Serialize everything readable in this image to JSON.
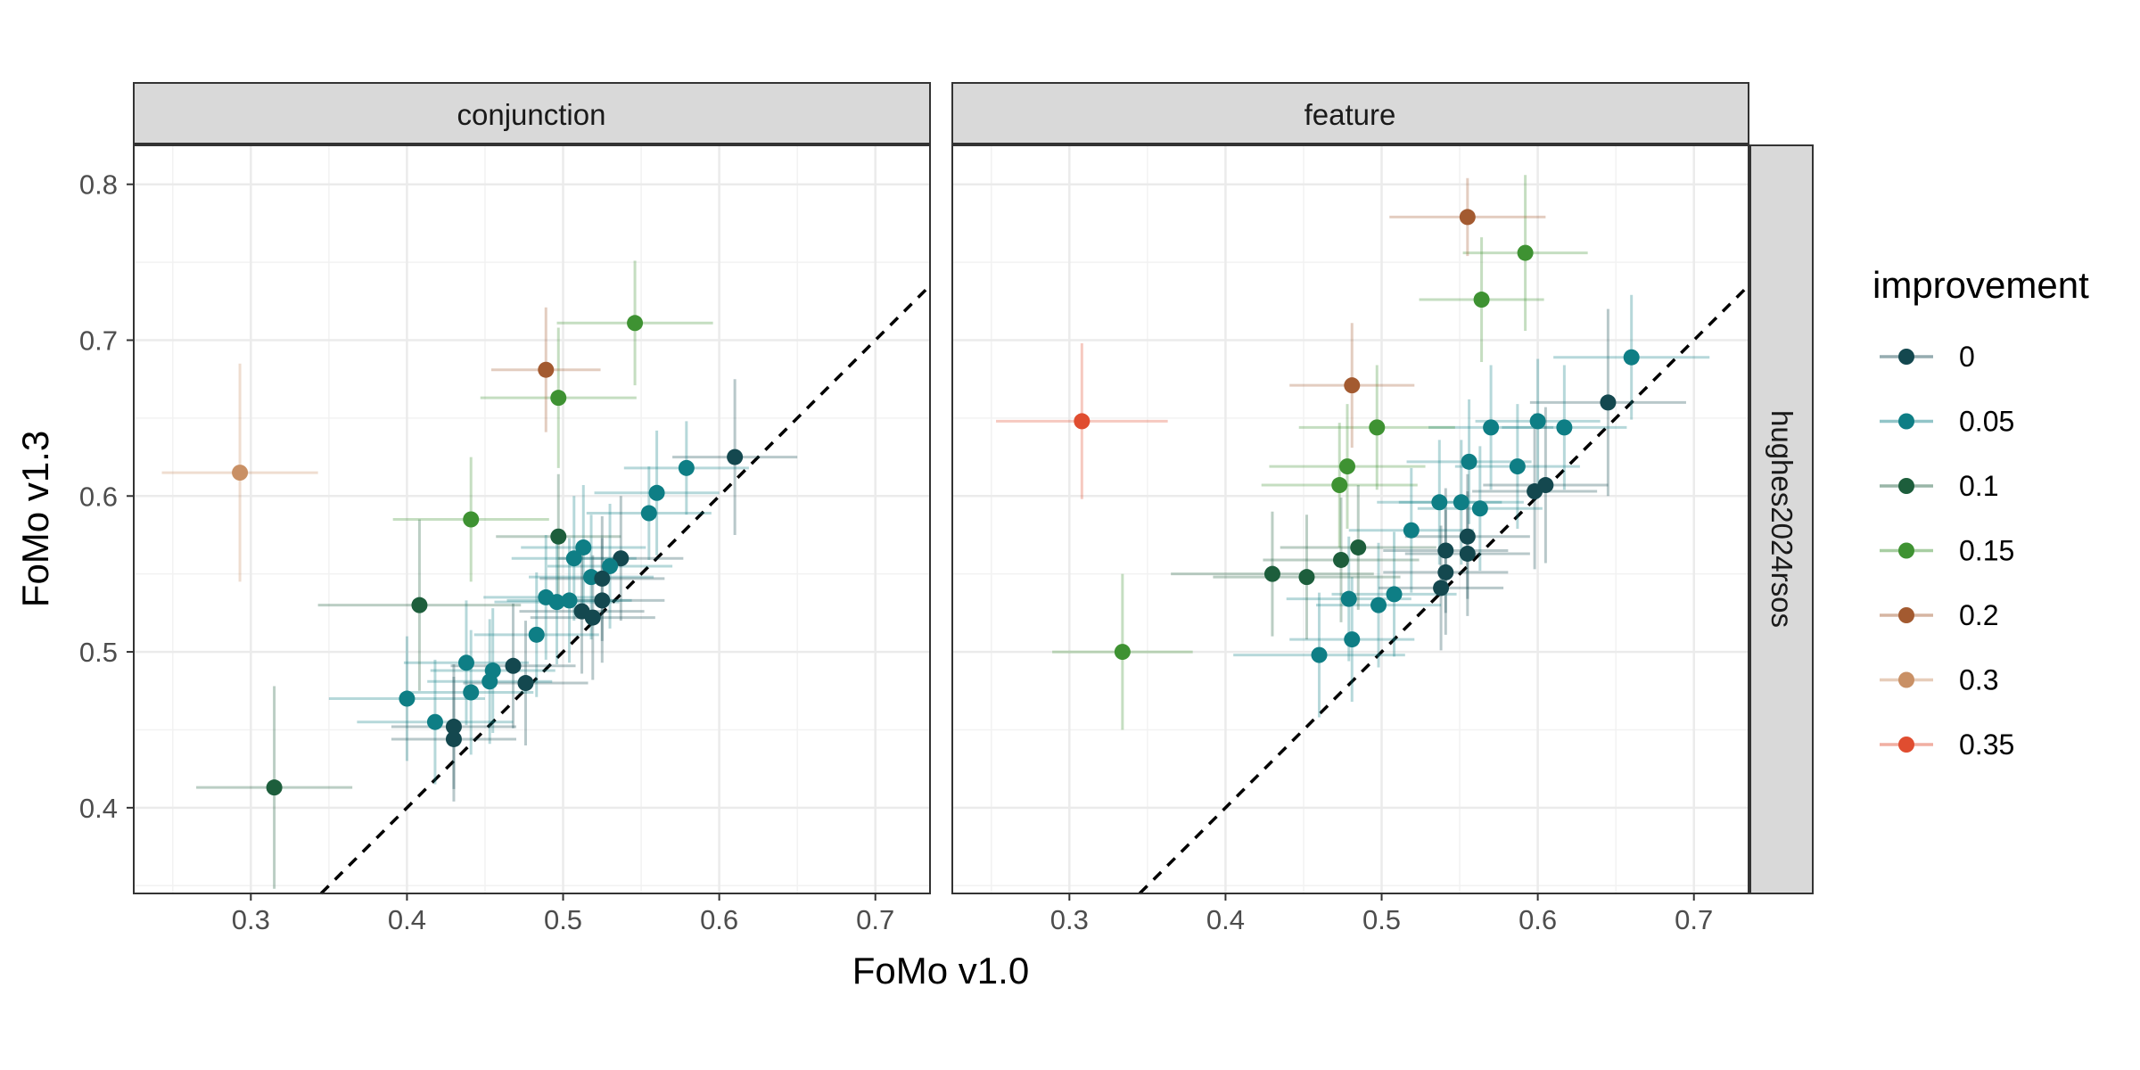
{
  "chart_data": {
    "type": "scatter",
    "xlabel": "FoMo v1.0",
    "ylabel": "FoMo v1.3",
    "xlim": [
      0.225,
      0.735
    ],
    "ylim": [
      0.345,
      0.825
    ],
    "x_ticks": [
      "0.3",
      "0.4",
      "0.5",
      "0.6",
      "0.7"
    ],
    "y_ticks": [
      "0.4",
      "0.5",
      "0.6",
      "0.7",
      "0.8"
    ],
    "grid": true,
    "reference_line": "y = x, dashed",
    "row_strip": "hughes2024rsos",
    "legend": {
      "title": "improvement",
      "placement": "right",
      "levels": [
        {
          "label": "0",
          "color": "#14484f"
        },
        {
          "label": "0.05",
          "color": "#0e7e85"
        },
        {
          "label": "0.1",
          "color": "#1d5e3c"
        },
        {
          "label": "0.15",
          "color": "#3e9232"
        },
        {
          "label": "0.2",
          "color": "#a35a30"
        },
        {
          "label": "0.3",
          "color": "#c99065"
        },
        {
          "label": "0.35",
          "color": "#e04d30"
        }
      ]
    },
    "panels": [
      {
        "title": "conjunction",
        "points": [
          {
            "x": 0.61,
            "y": 0.625,
            "xerr": 0.04,
            "yerr": 0.05,
            "g": "0"
          },
          {
            "x": 0.579,
            "y": 0.618,
            "xerr": 0.04,
            "yerr": 0.03,
            "g": "0.05"
          },
          {
            "x": 0.56,
            "y": 0.602,
            "xerr": 0.04,
            "yerr": 0.04,
            "g": "0.05"
          },
          {
            "x": 0.555,
            "y": 0.589,
            "xerr": 0.04,
            "yerr": 0.03,
            "g": "0.05"
          },
          {
            "x": 0.537,
            "y": 0.56,
            "xerr": 0.04,
            "yerr": 0.04,
            "g": "0"
          },
          {
            "x": 0.53,
            "y": 0.555,
            "xerr": 0.04,
            "yerr": 0.04,
            "g": "0.05"
          },
          {
            "x": 0.513,
            "y": 0.567,
            "xerr": 0.04,
            "yerr": 0.04,
            "g": "0.05"
          },
          {
            "x": 0.518,
            "y": 0.548,
            "xerr": 0.04,
            "yerr": 0.04,
            "g": "0.05"
          },
          {
            "x": 0.525,
            "y": 0.547,
            "xerr": 0.04,
            "yerr": 0.04,
            "g": "0"
          },
          {
            "x": 0.507,
            "y": 0.56,
            "xerr": 0.04,
            "yerr": 0.04,
            "g": "0.05"
          },
          {
            "x": 0.497,
            "y": 0.574,
            "xerr": 0.04,
            "yerr": 0.04,
            "g": "0.1"
          },
          {
            "x": 0.525,
            "y": 0.533,
            "xerr": 0.04,
            "yerr": 0.04,
            "g": "0"
          },
          {
            "x": 0.519,
            "y": 0.522,
            "xerr": 0.04,
            "yerr": 0.04,
            "g": "0"
          },
          {
            "x": 0.512,
            "y": 0.526,
            "xerr": 0.04,
            "yerr": 0.04,
            "g": "0"
          },
          {
            "x": 0.504,
            "y": 0.533,
            "xerr": 0.04,
            "yerr": 0.04,
            "g": "0.05"
          },
          {
            "x": 0.496,
            "y": 0.532,
            "xerr": 0.04,
            "yerr": 0.04,
            "g": "0.05"
          },
          {
            "x": 0.489,
            "y": 0.535,
            "xerr": 0.04,
            "yerr": 0.04,
            "g": "0.05"
          },
          {
            "x": 0.483,
            "y": 0.511,
            "xerr": 0.04,
            "yerr": 0.04,
            "g": "0.05"
          },
          {
            "x": 0.476,
            "y": 0.48,
            "xerr": 0.04,
            "yerr": 0.04,
            "g": "0"
          },
          {
            "x": 0.468,
            "y": 0.491,
            "xerr": 0.04,
            "yerr": 0.04,
            "g": "0"
          },
          {
            "x": 0.455,
            "y": 0.488,
            "xerr": 0.04,
            "yerr": 0.04,
            "g": "0.05"
          },
          {
            "x": 0.453,
            "y": 0.481,
            "xerr": 0.04,
            "yerr": 0.04,
            "g": "0.05"
          },
          {
            "x": 0.438,
            "y": 0.493,
            "xerr": 0.04,
            "yerr": 0.04,
            "g": "0.05"
          },
          {
            "x": 0.441,
            "y": 0.474,
            "xerr": 0.04,
            "yerr": 0.04,
            "g": "0.05"
          },
          {
            "x": 0.4,
            "y": 0.47,
            "xerr": 0.05,
            "yerr": 0.04,
            "g": "0.05"
          },
          {
            "x": 0.418,
            "y": 0.455,
            "xerr": 0.05,
            "yerr": 0.04,
            "g": "0.05"
          },
          {
            "x": 0.43,
            "y": 0.452,
            "xerr": 0.04,
            "yerr": 0.04,
            "g": "0"
          },
          {
            "x": 0.43,
            "y": 0.444,
            "xerr": 0.04,
            "yerr": 0.04,
            "g": "0"
          },
          {
            "x": 0.408,
            "y": 0.53,
            "xerr": 0.065,
            "yerr": 0.055,
            "g": "0.1"
          },
          {
            "x": 0.315,
            "y": 0.413,
            "xerr": 0.05,
            "yerr": 0.065,
            "g": "0.1"
          },
          {
            "x": 0.441,
            "y": 0.585,
            "xerr": 0.05,
            "yerr": 0.04,
            "g": "0.15"
          },
          {
            "x": 0.497,
            "y": 0.663,
            "xerr": 0.05,
            "yerr": 0.045,
            "g": "0.15"
          },
          {
            "x": 0.546,
            "y": 0.711,
            "xerr": 0.05,
            "yerr": 0.04,
            "g": "0.15"
          },
          {
            "x": 0.489,
            "y": 0.681,
            "xerr": 0.035,
            "yerr": 0.04,
            "g": "0.2"
          },
          {
            "x": 0.293,
            "y": 0.615,
            "xerr": 0.05,
            "yerr": 0.07,
            "g": "0.3"
          }
        ]
      },
      {
        "title": "feature",
        "points": [
          {
            "x": 0.645,
            "y": 0.66,
            "xerr": 0.05,
            "yerr": 0.06,
            "g": "0"
          },
          {
            "x": 0.66,
            "y": 0.689,
            "xerr": 0.05,
            "yerr": 0.04,
            "g": "0.05"
          },
          {
            "x": 0.617,
            "y": 0.644,
            "xerr": 0.04,
            "yerr": 0.04,
            "g": "0.05"
          },
          {
            "x": 0.6,
            "y": 0.648,
            "xerr": 0.04,
            "yerr": 0.04,
            "g": "0.05"
          },
          {
            "x": 0.57,
            "y": 0.644,
            "xerr": 0.04,
            "yerr": 0.04,
            "g": "0.05"
          },
          {
            "x": 0.587,
            "y": 0.619,
            "xerr": 0.04,
            "yerr": 0.04,
            "g": "0.05"
          },
          {
            "x": 0.605,
            "y": 0.607,
            "xerr": 0.04,
            "yerr": 0.05,
            "g": "0"
          },
          {
            "x": 0.598,
            "y": 0.603,
            "xerr": 0.04,
            "yerr": 0.05,
            "g": "0"
          },
          {
            "x": 0.556,
            "y": 0.622,
            "xerr": 0.04,
            "yerr": 0.04,
            "g": "0.05"
          },
          {
            "x": 0.563,
            "y": 0.592,
            "xerr": 0.04,
            "yerr": 0.04,
            "g": "0.05"
          },
          {
            "x": 0.551,
            "y": 0.596,
            "xerr": 0.04,
            "yerr": 0.04,
            "g": "0.05"
          },
          {
            "x": 0.537,
            "y": 0.596,
            "xerr": 0.04,
            "yerr": 0.04,
            "g": "0.05"
          },
          {
            "x": 0.519,
            "y": 0.578,
            "xerr": 0.04,
            "yerr": 0.04,
            "g": "0.05"
          },
          {
            "x": 0.555,
            "y": 0.574,
            "xerr": 0.04,
            "yerr": 0.04,
            "g": "0"
          },
          {
            "x": 0.541,
            "y": 0.565,
            "xerr": 0.04,
            "yerr": 0.04,
            "g": "0"
          },
          {
            "x": 0.555,
            "y": 0.563,
            "xerr": 0.04,
            "yerr": 0.04,
            "g": "0"
          },
          {
            "x": 0.541,
            "y": 0.551,
            "xerr": 0.04,
            "yerr": 0.04,
            "g": "0"
          },
          {
            "x": 0.538,
            "y": 0.541,
            "xerr": 0.04,
            "yerr": 0.04,
            "g": "0"
          },
          {
            "x": 0.508,
            "y": 0.537,
            "xerr": 0.04,
            "yerr": 0.04,
            "g": "0.05"
          },
          {
            "x": 0.498,
            "y": 0.53,
            "xerr": 0.04,
            "yerr": 0.04,
            "g": "0.05"
          },
          {
            "x": 0.479,
            "y": 0.534,
            "xerr": 0.04,
            "yerr": 0.04,
            "g": "0.05"
          },
          {
            "x": 0.481,
            "y": 0.508,
            "xerr": 0.04,
            "yerr": 0.04,
            "g": "0.05"
          },
          {
            "x": 0.46,
            "y": 0.498,
            "xerr": 0.055,
            "yerr": 0.04,
            "g": "0.05"
          },
          {
            "x": 0.485,
            "y": 0.567,
            "xerr": 0.05,
            "yerr": 0.04,
            "g": "0.1"
          },
          {
            "x": 0.474,
            "y": 0.559,
            "xerr": 0.05,
            "yerr": 0.04,
            "g": "0.1"
          },
          {
            "x": 0.452,
            "y": 0.548,
            "xerr": 0.06,
            "yerr": 0.04,
            "g": "0.1"
          },
          {
            "x": 0.43,
            "y": 0.55,
            "xerr": 0.065,
            "yerr": 0.04,
            "g": "0.1"
          },
          {
            "x": 0.478,
            "y": 0.619,
            "xerr": 0.05,
            "yerr": 0.04,
            "g": "0.15"
          },
          {
            "x": 0.473,
            "y": 0.607,
            "xerr": 0.05,
            "yerr": 0.04,
            "g": "0.15"
          },
          {
            "x": 0.497,
            "y": 0.644,
            "xerr": 0.05,
            "yerr": 0.04,
            "g": "0.15"
          },
          {
            "x": 0.334,
            "y": 0.5,
            "xerr": 0.045,
            "yerr": 0.05,
            "g": "0.15"
          },
          {
            "x": 0.564,
            "y": 0.726,
            "xerr": 0.04,
            "yerr": 0.04,
            "g": "0.15"
          },
          {
            "x": 0.592,
            "y": 0.756,
            "xerr": 0.04,
            "yerr": 0.05,
            "g": "0.15"
          },
          {
            "x": 0.481,
            "y": 0.671,
            "xerr": 0.04,
            "yerr": 0.04,
            "g": "0.2"
          },
          {
            "x": 0.555,
            "y": 0.779,
            "xerr": 0.05,
            "yerr": 0.025,
            "g": "0.2"
          },
          {
            "x": 0.308,
            "y": 0.648,
            "xerr": 0.055,
            "yerr": 0.05,
            "g": "0.35"
          }
        ]
      }
    ]
  }
}
